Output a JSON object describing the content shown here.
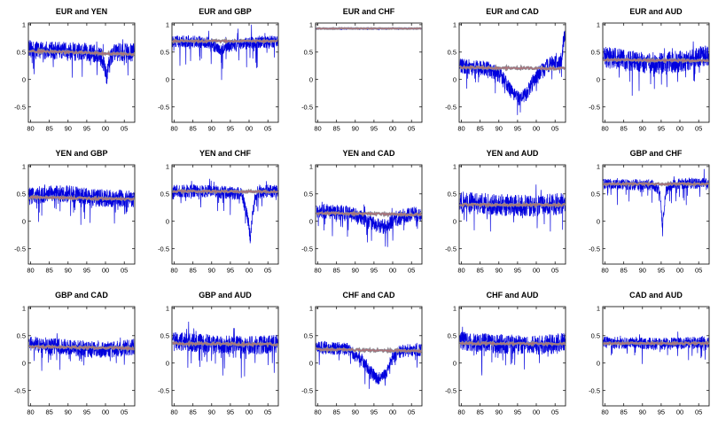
{
  "chart_data": {
    "type": "line",
    "description": "Grid of 15 rolling-correlation time series between currency pairs, 1980-2007",
    "layout": {
      "rows": 3,
      "cols": 5,
      "grid": false,
      "legend": "none"
    },
    "xlim": [
      1979.4,
      2007.8
    ],
    "ylim": [
      -0.78,
      1.03
    ],
    "xticks": [
      1980,
      1985,
      1990,
      1995,
      2000,
      2005
    ],
    "xtick_labels": [
      "80",
      "85",
      "90",
      "95",
      "00",
      "05"
    ],
    "ytick_values": [
      1,
      0.5,
      0,
      -0.5
    ],
    "ytick_labels": [
      "1",
      "0.5",
      "0",
      "-0.5"
    ],
    "colors": {
      "noisy": "#0000dd",
      "band_grey": "#8c8c94",
      "band_red": "#b66a72",
      "axis": "#000000"
    },
    "panels": [
      {
        "title": "EUR and YEN",
        "seed": 1,
        "noise": 0.17,
        "spike": 0.45,
        "smooth_noise": 0.02,
        "blue_base": [
          [
            1979,
            0.55
          ],
          [
            1988,
            0.52
          ],
          [
            1996,
            0.5
          ],
          [
            1999,
            0.4
          ],
          [
            2000.3,
            0.05
          ],
          [
            2001,
            0.3
          ],
          [
            2002,
            0.5
          ],
          [
            2008,
            0.5
          ]
        ],
        "smooth_base": [
          [
            1979,
            0.52
          ],
          [
            2008,
            0.46
          ]
        ]
      },
      {
        "title": "EUR and GBP",
        "seed": 2,
        "noise": 0.11,
        "spike": 0.55,
        "smooth_noise": 0.018,
        "blue_base": [
          [
            1979,
            0.7
          ],
          [
            1989,
            0.68
          ],
          [
            1992,
            0.55
          ],
          [
            1994,
            0.6
          ],
          [
            1997,
            0.65
          ],
          [
            2008,
            0.7
          ]
        ],
        "smooth_base": [
          [
            1979,
            0.7
          ],
          [
            2008,
            0.7
          ]
        ]
      },
      {
        "title": "EUR and CHF",
        "seed": 3,
        "noise": 0.012,
        "spike": 0.03,
        "smooth_noise": 0.006,
        "blue_base": [
          [
            1979,
            0.93
          ],
          [
            2008,
            0.93
          ]
        ],
        "smooth_base": [
          [
            1979,
            0.93
          ],
          [
            2008,
            0.93
          ]
        ]
      },
      {
        "title": "EUR and CAD",
        "seed": 4,
        "noise": 0.14,
        "spike": 0.3,
        "smooth_noise": 0.02,
        "blue_base": [
          [
            1979,
            0.25
          ],
          [
            1987,
            0.2
          ],
          [
            1991,
            0.05
          ],
          [
            1993,
            -0.2
          ],
          [
            1995,
            -0.35
          ],
          [
            1997,
            -0.3
          ],
          [
            1999,
            -0.05
          ],
          [
            2001,
            0.15
          ],
          [
            2004,
            0.3
          ],
          [
            2006.5,
            0.3
          ],
          [
            2007.5,
            0.8
          ]
        ],
        "smooth_base": [
          [
            1979,
            0.22
          ],
          [
            2008,
            0.2
          ]
        ]
      },
      {
        "title": "EUR and AUD",
        "seed": 5,
        "noise": 0.2,
        "spike": 0.5,
        "smooth_noise": 0.02,
        "blue_base": [
          [
            1979,
            0.42
          ],
          [
            1985,
            0.35
          ],
          [
            1990,
            0.3
          ],
          [
            1995,
            0.3
          ],
          [
            2000,
            0.33
          ],
          [
            2005,
            0.4
          ],
          [
            2008,
            0.45
          ]
        ],
        "smooth_base": [
          [
            1979,
            0.36
          ],
          [
            2008,
            0.34
          ]
        ]
      },
      {
        "title": "YEN and GBP",
        "seed": 6,
        "noise": 0.16,
        "spike": 0.4,
        "smooth_noise": 0.02,
        "blue_base": [
          [
            1979,
            0.45
          ],
          [
            1985,
            0.5
          ],
          [
            1990,
            0.5
          ],
          [
            1995,
            0.45
          ],
          [
            2000,
            0.42
          ],
          [
            2008,
            0.4
          ]
        ],
        "smooth_base": [
          [
            1979,
            0.44
          ],
          [
            2008,
            0.4
          ]
        ]
      },
      {
        "title": "YEN and CHF",
        "seed": 7,
        "noise": 0.12,
        "spike": 0.35,
        "smooth_noise": 0.018,
        "blue_base": [
          [
            1979,
            0.55
          ],
          [
            1990,
            0.55
          ],
          [
            1998,
            0.5
          ],
          [
            1999.6,
            0.1
          ],
          [
            2000.3,
            -0.3
          ],
          [
            2001,
            0.2
          ],
          [
            2002,
            0.55
          ],
          [
            2008,
            0.55
          ]
        ],
        "smooth_base": [
          [
            1979,
            0.55
          ],
          [
            2008,
            0.54
          ]
        ]
      },
      {
        "title": "YEN and CAD",
        "seed": 8,
        "noise": 0.14,
        "spike": 0.4,
        "smooth_noise": 0.02,
        "blue_base": [
          [
            1979,
            0.2
          ],
          [
            1988,
            0.15
          ],
          [
            1992,
            0.05
          ],
          [
            1995,
            -0.05
          ],
          [
            1998,
            -0.1
          ],
          [
            2000,
            0
          ],
          [
            2003,
            0.1
          ],
          [
            2008,
            0.15
          ]
        ],
        "smooth_base": [
          [
            1979,
            0.15
          ],
          [
            2008,
            0.12
          ]
        ]
      },
      {
        "title": "YEN and AUD",
        "seed": 9,
        "noise": 0.2,
        "spike": 0.5,
        "smooth_noise": 0.02,
        "blue_base": [
          [
            1979,
            0.35
          ],
          [
            1990,
            0.3
          ],
          [
            2000,
            0.28
          ],
          [
            2008,
            0.33
          ]
        ],
        "smooth_base": [
          [
            1979,
            0.3
          ],
          [
            2008,
            0.3
          ]
        ]
      },
      {
        "title": "GBP and CHF",
        "seed": 10,
        "noise": 0.1,
        "spike": 0.4,
        "smooth_noise": 0.016,
        "blue_base": [
          [
            1979,
            0.68
          ],
          [
            1993,
            0.66
          ],
          [
            1994.6,
            0.55
          ],
          [
            1995.3,
            -0.1
          ],
          [
            1996.2,
            0.55
          ],
          [
            1998,
            0.68
          ],
          [
            2008,
            0.7
          ]
        ],
        "smooth_base": [
          [
            1979,
            0.68
          ],
          [
            2008,
            0.68
          ]
        ]
      },
      {
        "title": "GBP and CAD",
        "seed": 11,
        "noise": 0.15,
        "spike": 0.35,
        "smooth_noise": 0.02,
        "blue_base": [
          [
            1979,
            0.35
          ],
          [
            1988,
            0.3
          ],
          [
            1995,
            0.25
          ],
          [
            2002,
            0.25
          ],
          [
            2008,
            0.3
          ]
        ],
        "smooth_base": [
          [
            1979,
            0.3
          ],
          [
            2008,
            0.27
          ]
        ]
      },
      {
        "title": "GBP and AUD",
        "seed": 12,
        "noise": 0.17,
        "spike": 0.5,
        "smooth_noise": 0.02,
        "blue_base": [
          [
            1979,
            0.4
          ],
          [
            1990,
            0.35
          ],
          [
            2000,
            0.32
          ],
          [
            2008,
            0.35
          ]
        ],
        "smooth_base": [
          [
            1979,
            0.36
          ],
          [
            2008,
            0.34
          ]
        ]
      },
      {
        "title": "CHF and CAD",
        "seed": 13,
        "noise": 0.12,
        "spike": 0.3,
        "smooth_noise": 0.02,
        "blue_base": [
          [
            1979,
            0.3
          ],
          [
            1988,
            0.25
          ],
          [
            1992,
            0.05
          ],
          [
            1994,
            -0.15
          ],
          [
            1996,
            -0.3
          ],
          [
            1998,
            -0.2
          ],
          [
            2000,
            0.1
          ],
          [
            2002,
            0.22
          ],
          [
            2008,
            0.25
          ]
        ],
        "smooth_base": [
          [
            1979,
            0.25
          ],
          [
            2008,
            0.22
          ]
        ]
      },
      {
        "title": "CHF and AUD",
        "seed": 14,
        "noise": 0.18,
        "spike": 0.55,
        "smooth_noise": 0.02,
        "blue_base": [
          [
            1979,
            0.4
          ],
          [
            1990,
            0.35
          ],
          [
            2000,
            0.32
          ],
          [
            2008,
            0.38
          ]
        ],
        "smooth_base": [
          [
            1979,
            0.36
          ],
          [
            2008,
            0.35
          ]
        ]
      },
      {
        "title": "CAD and AUD",
        "seed": 15,
        "noise": 0.11,
        "spike": 0.3,
        "smooth_noise": 0.018,
        "blue_base": [
          [
            1979,
            0.38
          ],
          [
            1995,
            0.35
          ],
          [
            2008,
            0.38
          ]
        ],
        "smooth_base": [
          [
            1979,
            0.36
          ],
          [
            2008,
            0.36
          ]
        ]
      }
    ]
  }
}
